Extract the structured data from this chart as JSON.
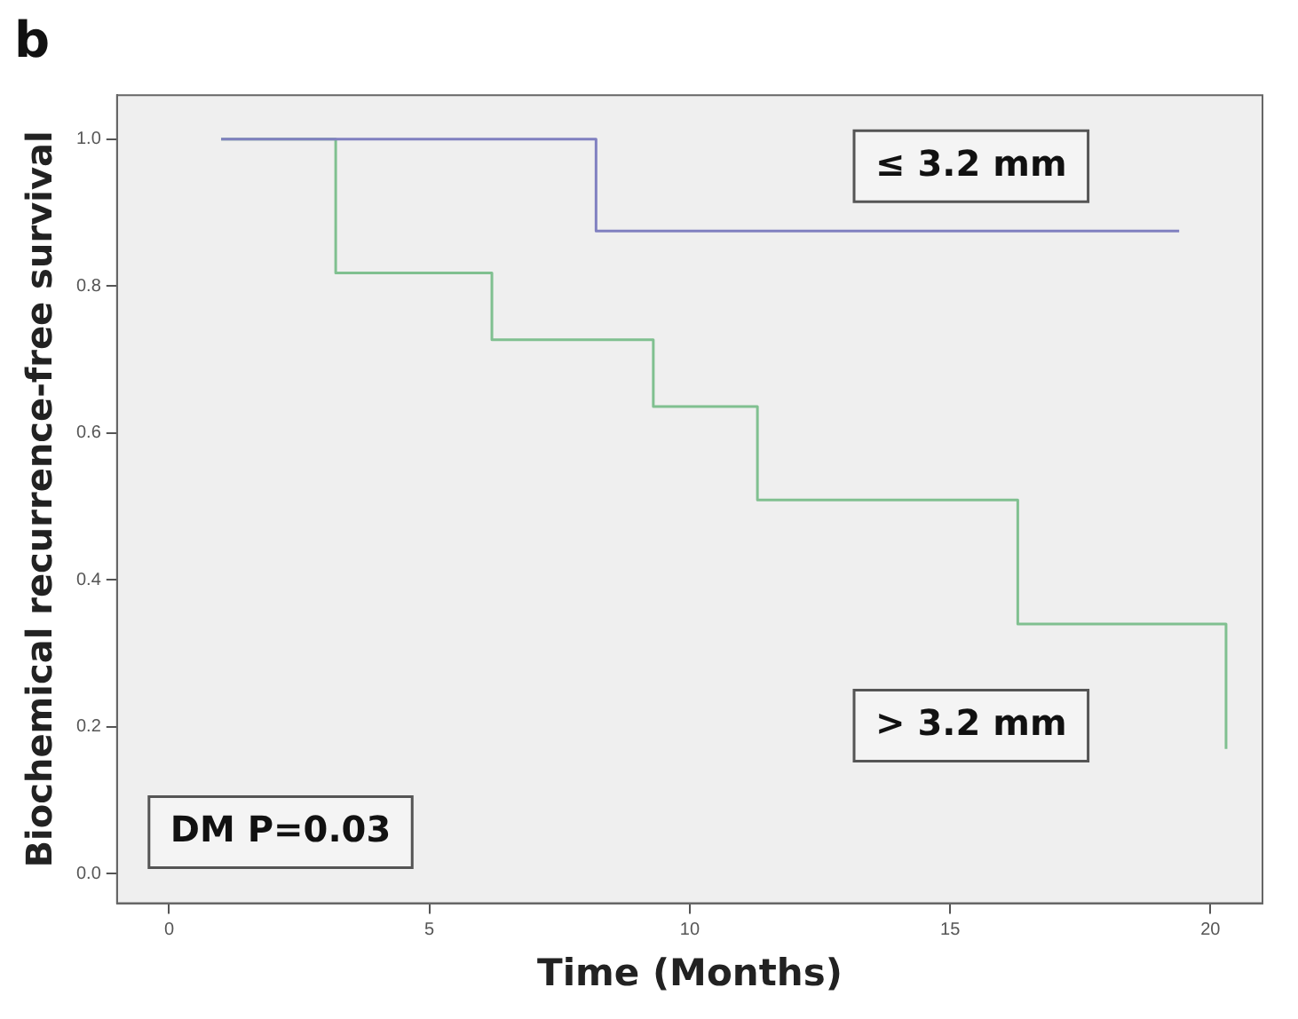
{
  "chart_data": {
    "type": "step",
    "title": "b",
    "xlabel": "Time (Months)",
    "ylabel": "Biochemical recurrence-free survival",
    "xlim": [
      -1,
      21
    ],
    "xticks": [
      0,
      5,
      10,
      15,
      20
    ],
    "ylim": [
      -0.04,
      1.06
    ],
    "yticks": [
      {
        "value": 0,
        "label": "0.0"
      },
      0.2,
      0.4,
      0.6,
      0.8,
      {
        "value": 1,
        "label": "1.0"
      }
    ],
    "grid": false,
    "legend": false,
    "marker": "none",
    "line_style": "solid",
    "series": [
      {
        "name": "≤ 3.2 mm",
        "color": "#8080c0",
        "x": [
          1,
          8.2,
          19.4
        ],
        "values": [
          1,
          0.875,
          0.875
        ]
      },
      {
        "name": "> 3.2 mm",
        "color": "#80c090",
        "x": [
          1,
          3.2,
          6.2,
          9.3,
          11.3,
          16.3,
          20.3
        ],
        "values": [
          1,
          0.818,
          0.727,
          0.636,
          0.509,
          0.34,
          0.17
        ]
      }
    ],
    "annotations": [
      "DM P=0.03"
    ]
  }
}
